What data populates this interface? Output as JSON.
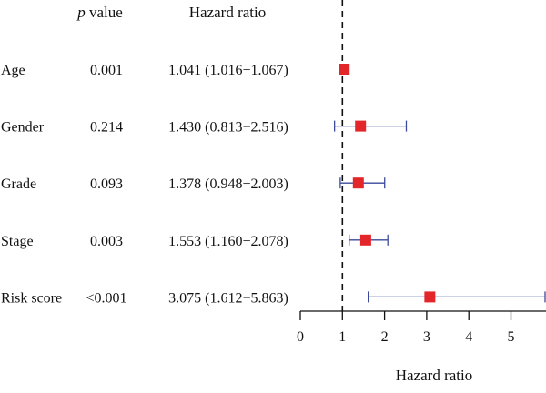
{
  "chart_data": {
    "type": "forest",
    "headers": {
      "pvalue_italic": "p",
      "pvalue_rest": " value",
      "hr": "Hazard ratio"
    },
    "rows": [
      {
        "label": "Age",
        "pvalue": "0.001",
        "hr_text": "1.041 (1.016−1.067)",
        "hr": 1.041,
        "lower": 1.016,
        "upper": 1.067
      },
      {
        "label": "Gender",
        "pvalue": "0.214",
        "hr_text": "1.430 (0.813−2.516)",
        "hr": 1.43,
        "lower": 0.813,
        "upper": 2.516
      },
      {
        "label": "Grade",
        "pvalue": "0.093",
        "hr_text": "1.378 (0.948−2.003)",
        "hr": 1.378,
        "lower": 0.948,
        "upper": 2.003
      },
      {
        "label": "Stage",
        "pvalue": "0.003",
        "hr_text": "1.553 (1.160−2.078)",
        "hr": 1.553,
        "lower": 1.16,
        "upper": 2.078
      },
      {
        "label": "Risk score",
        "pvalue": "<0.001",
        "hr_text": "3.075 (1.612−5.863)",
        "hr": 3.075,
        "lower": 1.612,
        "upper": 5.863
      }
    ],
    "xlim": [
      0,
      5.863
    ],
    "xticks": [
      0,
      1,
      2,
      3,
      4,
      5
    ],
    "xlabel": "Hazard ratio",
    "reference_line": 1,
    "colors": {
      "marker": "#e3262a",
      "ci": "#3b4a9a",
      "axis": "#111111"
    }
  }
}
